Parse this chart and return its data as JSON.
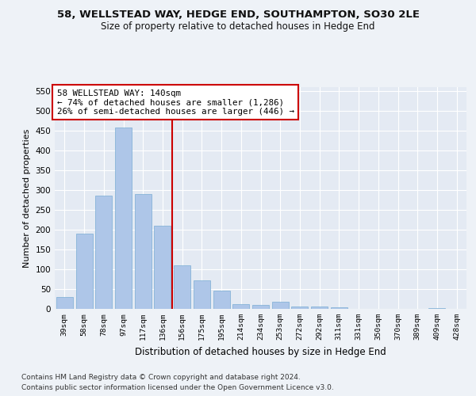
{
  "title1": "58, WELLSTEAD WAY, HEDGE END, SOUTHAMPTON, SO30 2LE",
  "title2": "Size of property relative to detached houses in Hedge End",
  "xlabel": "Distribution of detached houses by size in Hedge End",
  "ylabel": "Number of detached properties",
  "categories": [
    "39sqm",
    "58sqm",
    "78sqm",
    "97sqm",
    "117sqm",
    "136sqm",
    "156sqm",
    "175sqm",
    "195sqm",
    "214sqm",
    "234sqm",
    "253sqm",
    "272sqm",
    "292sqm",
    "311sqm",
    "331sqm",
    "350sqm",
    "370sqm",
    "389sqm",
    "409sqm",
    "428sqm"
  ],
  "values": [
    30,
    190,
    287,
    458,
    290,
    210,
    110,
    73,
    47,
    12,
    10,
    19,
    6,
    7,
    5,
    0,
    0,
    0,
    0,
    3,
    0
  ],
  "bar_color": "#aec6e8",
  "bar_edge_color": "#7aadd4",
  "vline_x": 5.5,
  "vline_color": "#cc0000",
  "annotation_text": "58 WELLSTEAD WAY: 140sqm\n← 74% of detached houses are smaller (1,286)\n26% of semi-detached houses are larger (446) →",
  "annotation_box_color": "#ffffff",
  "annotation_box_edge_color": "#cc0000",
  "ylim": [
    0,
    560
  ],
  "yticks": [
    0,
    50,
    100,
    150,
    200,
    250,
    300,
    350,
    400,
    450,
    500,
    550
  ],
  "footer1": "Contains HM Land Registry data © Crown copyright and database right 2024.",
  "footer2": "Contains public sector information licensed under the Open Government Licence v3.0.",
  "bg_color": "#eef2f7",
  "plot_bg_color": "#e4eaf3",
  "grid_color": "#ffffff"
}
